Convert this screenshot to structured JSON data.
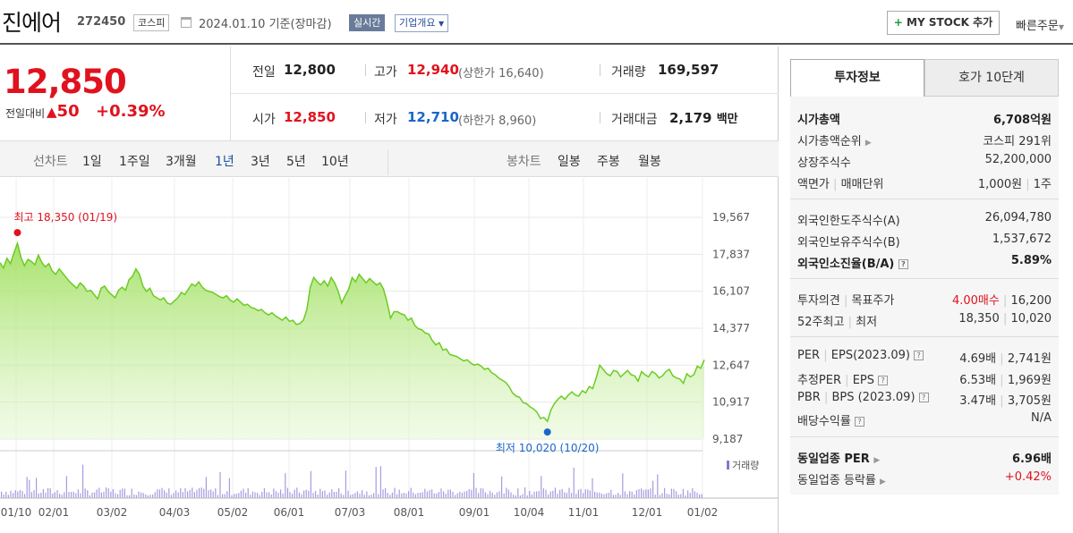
{
  "header": {
    "name": "진에어",
    "code": "272450",
    "market": "코스피",
    "date": "2024.01.10",
    "basis": "기준(장마감)",
    "realtime": "실시간",
    "company": "기업개요",
    "mystock": "MY STOCK 추가",
    "quick": "빠른주문"
  },
  "quote": {
    "price": "12,850",
    "change_label": "전일대비",
    "change": "50",
    "pct": "+0.39%"
  },
  "stats": {
    "prev_l": "전일",
    "prev": "12,800",
    "high_l": "고가",
    "high": "12,940",
    "upper": "(상한가 16,640)",
    "vol_l": "거래량",
    "vol": "169,597",
    "open_l": "시가",
    "open": "12,850",
    "low_l": "저가",
    "low": "12,710",
    "lower": "(하한가 8,960)",
    "amt_l": "거래대금",
    "amt": "2,179",
    "amt_unit": "백만"
  },
  "toolbar": {
    "line": "선차트",
    "p1": "1일",
    "p2": "1주일",
    "p3": "3개월",
    "p4": "1년",
    "p5": "3년",
    "p6": "5년",
    "p7": "10년",
    "candle": "봉차트",
    "c1": "일봉",
    "c2": "주봉",
    "c3": "월봉"
  },
  "tabs": {
    "t1": "투자정보",
    "t2": "호가 10단계"
  },
  "info": {
    "r1l": "시가총액",
    "r1v": "6,708억원",
    "r2l": "시가총액순위",
    "r2v": "코스피 291위",
    "r3l": "상장주식수",
    "r3v": "52,200,000",
    "r4l": "액면가",
    "r4l2": "매매단위",
    "r4v": "1,000원",
    "r4v2": "1주",
    "r5l": "외국인한도주식수(A)",
    "r5v": "26,094,780",
    "r6l": "외국인보유주식수(B)",
    "r6v": "1,537,672",
    "r7l": "외국인소진율(B/A)",
    "r7v": "5.89%",
    "r8l": "투자의견",
    "r8l2": "목표주가",
    "r8v": "4.00매수",
    "r8v2": "16,200",
    "r9l": "52주최고",
    "r9l2": "최저",
    "r9v": "18,350",
    "r9v2": "10,020",
    "r10l": "PER",
    "r10l2": "EPS(2023.09)",
    "r10v": "4.69배",
    "r10v2": "2,741원",
    "r11l": "추정PER",
    "r11l2": "EPS",
    "r11v": "6.53배",
    "r11v2": "1,969원",
    "r12l": "PBR",
    "r12l2": "BPS (2023.09)",
    "r12v": "3.47배",
    "r12v2": "3,705원",
    "r13l": "배당수익률",
    "r13v": "N/A",
    "r14l": "동일업종 PER",
    "r14v": "6.96배",
    "r15l": "동일업종 등락률",
    "r15v": "+0.42%"
  },
  "chart_data": {
    "type": "area",
    "y_ticks": [
      "19,567",
      "17,837",
      "16,107",
      "14,377",
      "12,647",
      "10,917",
      "9,187"
    ],
    "x_ticks": [
      "01/10",
      "02/01",
      "03/02",
      "04/03",
      "05/02",
      "06/01",
      "07/03",
      "08/01",
      "09/01",
      "10/04",
      "11/01",
      "12/01",
      "01/02"
    ],
    "ylim": [
      9187,
      19567
    ],
    "high_label": "최고 18,350 (01/19)",
    "low_label": "최저 10,020 (10/20)",
    "volume_label": "거래량",
    "values": [
      17450,
      17200,
      17650,
      17400,
      17900,
      18350,
      17700,
      17300,
      17600,
      17500,
      17350,
      17800,
      17450,
      17250,
      17400,
      17050,
      16900,
      17150,
      16950,
      16750,
      16550,
      16400,
      16250,
      16500,
      16350,
      16100,
      16150,
      15950,
      15750,
      16250,
      16350,
      16100,
      15950,
      15800,
      16150,
      16300,
      16150,
      16650,
      16800,
      17150,
      16900,
      16350,
      16100,
      16250,
      15900,
      15800,
      15700,
      15800,
      15550,
      15500,
      15650,
      15800,
      16050,
      15950,
      16200,
      16450,
      16350,
      16550,
      16300,
      16150,
      16100,
      16050,
      15950,
      15850,
      15800,
      15900,
      15700,
      15600,
      15750,
      15600,
      15450,
      15500,
      15350,
      15300,
      15200,
      15250,
      15100,
      15000,
      15100,
      14950,
      14850,
      14750,
      14900,
      14700,
      14750,
      14550,
      14600,
      14750,
      15250,
      16300,
      16750,
      16550,
      16400,
      16600,
      16350,
      16750,
      16500,
      16100,
      15550,
      15900,
      16200,
      16750,
      16550,
      16900,
      16700,
      16500,
      16700,
      16550,
      16400,
      16500,
      16200,
      15600,
      14850,
      15150,
      15150,
      15050,
      15000,
      14750,
      14850,
      14500,
      14350,
      14300,
      14150,
      14100,
      13800,
      13600,
      13700,
      13350,
      13400,
      13150,
      13100,
      13050,
      12950,
      12850,
      12900,
      12750,
      12650,
      12700,
      12600,
      12450,
      12500,
      12300,
      12200,
      12050,
      11950,
      11850,
      11650,
      11350,
      11200,
      11150,
      10900,
      10850,
      10700,
      10600,
      10450,
      10150,
      10200,
      10020,
      10550,
      10850,
      11050,
      11200,
      11050,
      11250,
      11400,
      11250,
      11200,
      11450,
      11350,
      11650,
      11550,
      12050,
      12650,
      12450,
      12250,
      12150,
      12400,
      12350,
      12100,
      12250,
      12400,
      12200,
      12150,
      11900,
      12350,
      12200,
      12100,
      12350,
      12250,
      12050,
      12150,
      12350,
      12450,
      12150,
      12050,
      12000,
      11800,
      12250,
      12100,
      12200,
      12600,
      12500,
      12900
    ]
  },
  "colors": {
    "up": "#e0121e",
    "down": "#1b66c9",
    "area": "#8fdc4a"
  }
}
